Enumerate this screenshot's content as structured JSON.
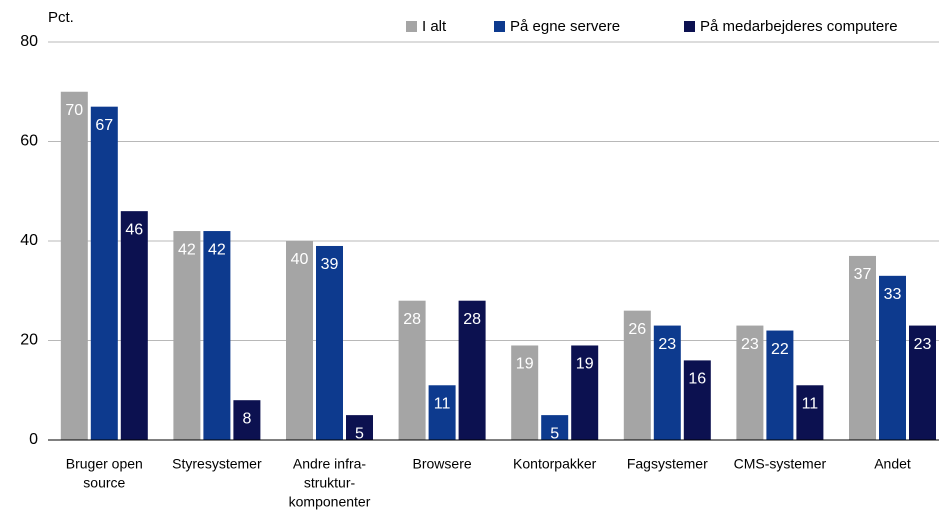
{
  "chart_data": {
    "type": "bar",
    "y_label": "Pct.",
    "categories": [
      [
        "Bruger open",
        "source"
      ],
      [
        "Styresystemer"
      ],
      [
        "Andre infra-",
        "struktur-",
        "komponenter"
      ],
      [
        "Browsere"
      ],
      [
        "Kontorpakker"
      ],
      [
        "Fagsystemer"
      ],
      [
        "CMS-systemer"
      ],
      [
        "Andet"
      ]
    ],
    "series": [
      {
        "name": "I alt",
        "color": "#a5a5a5",
        "values": [
          70,
          42,
          40,
          28,
          19,
          26,
          23,
          37
        ]
      },
      {
        "name": "På egne servere",
        "color": "#0d3a8e",
        "values": [
          67,
          42,
          39,
          11,
          5,
          23,
          22,
          33
        ]
      },
      {
        "name": "På medarbejderes computere",
        "color": "#0c1150",
        "values": [
          46,
          8,
          5,
          28,
          19,
          16,
          11,
          23
        ]
      }
    ],
    "ylim": [
      0,
      80
    ],
    "yticks": [
      0,
      20,
      40,
      60,
      80
    ],
    "grid": true,
    "legend": "top"
  }
}
